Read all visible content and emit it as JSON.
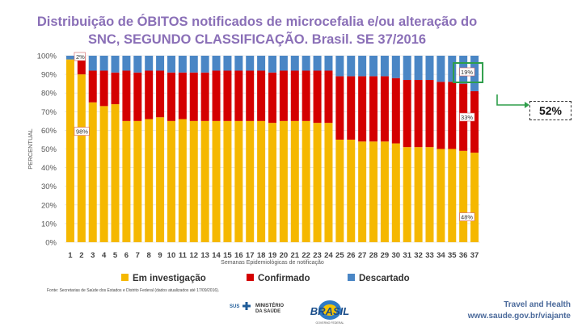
{
  "title_line1": "Distribuição de ÓBITOS notificados de microcefalia e/ou alteração do",
  "title_line2": "SNC, SEGUNDO CLASSIFICAÇÃO. Brasil. SE 37/2016",
  "source_note": "Fonte: Secretarias de Saúde dos Estados e Distrito Federal (dados atualizados até 17/09/2016).",
  "side_callout": "52%",
  "footer": {
    "line1": "Travel and Health",
    "line2": "www.saude.gov.br/viajante",
    "sus_label": "SUS",
    "ministerio_line1": "MINISTÉRIO",
    "ministerio_line2": "DA SAÚDE",
    "brasil_label": "BRASIL",
    "brasil_sub": "GOVERNO FEDERAL"
  },
  "colors": {
    "em_investigacao": "#f5b800",
    "confirmado": "#d40000",
    "descartado": "#4a86c5",
    "title": "#8a6fb7",
    "highlight_green": "#2e9e4a",
    "label_box": "#d06060"
  },
  "chart_data": {
    "type": "bar",
    "stacked": true,
    "percent": true,
    "title": "Distribuição de ÓBITOS notificados de microcefalia e/ou alteração do SNC, SEGUNDO CLASSIFICAÇÃO. Brasil. SE 37/2016",
    "xlabel": "Semanas Epidemiológicas de notificação",
    "ylabel": "PERCENTUAL",
    "ylim": [
      0,
      100
    ],
    "yticks": [
      "0%",
      "10%",
      "20%",
      "30%",
      "40%",
      "50%",
      "60%",
      "70%",
      "80%",
      "90%",
      "100%"
    ],
    "categories": [
      "1",
      "2",
      "3",
      "4",
      "5",
      "6",
      "7",
      "8",
      "9",
      "10",
      "11",
      "12",
      "13",
      "14",
      "15",
      "16",
      "17",
      "18",
      "19",
      "20",
      "21",
      "22",
      "23",
      "24",
      "25",
      "26",
      "27",
      "28",
      "29",
      "30",
      "31",
      "32",
      "33",
      "34",
      "35",
      "36",
      "37"
    ],
    "series": [
      {
        "name": "Em investigação",
        "values": [
          98,
          90,
          75,
          73,
          74,
          65,
          65,
          66,
          67,
          65,
          66,
          65,
          65,
          65,
          65,
          65,
          65,
          65,
          64,
          65,
          65,
          65,
          64,
          64,
          55,
          55,
          54,
          54,
          54,
          53,
          51,
          51,
          51,
          50,
          50,
          49,
          48
        ]
      },
      {
        "name": "Confirmado",
        "values": [
          0,
          10,
          17,
          19,
          17,
          27,
          26,
          26,
          25,
          26,
          25,
          26,
          26,
          27,
          27,
          27,
          27,
          27,
          27,
          27,
          27,
          27,
          28,
          28,
          34,
          34,
          35,
          35,
          35,
          35,
          36,
          36,
          36,
          36,
          36,
          36,
          33
        ]
      },
      {
        "name": "Descartado",
        "values": [
          2,
          0,
          8,
          8,
          9,
          8,
          9,
          8,
          8,
          9,
          9,
          9,
          9,
          8,
          8,
          8,
          8,
          8,
          9,
          8,
          8,
          8,
          8,
          8,
          11,
          11,
          11,
          11,
          11,
          12,
          13,
          13,
          13,
          14,
          14,
          15,
          19
        ]
      }
    ],
    "annotations": [
      {
        "text": "2%",
        "category": "1",
        "series": "Descartado"
      },
      {
        "text": "98%",
        "category": "1",
        "series": "Em investigação"
      },
      {
        "text": "19%",
        "category": "37",
        "series": "Descartado"
      },
      {
        "text": "33%",
        "category": "37",
        "series": "Confirmado"
      },
      {
        "text": "48%",
        "category": "37",
        "series": "Em investigação"
      }
    ],
    "legend": [
      "Em investigação",
      "Confirmado",
      "Descartado"
    ],
    "legend_position": "bottom"
  }
}
